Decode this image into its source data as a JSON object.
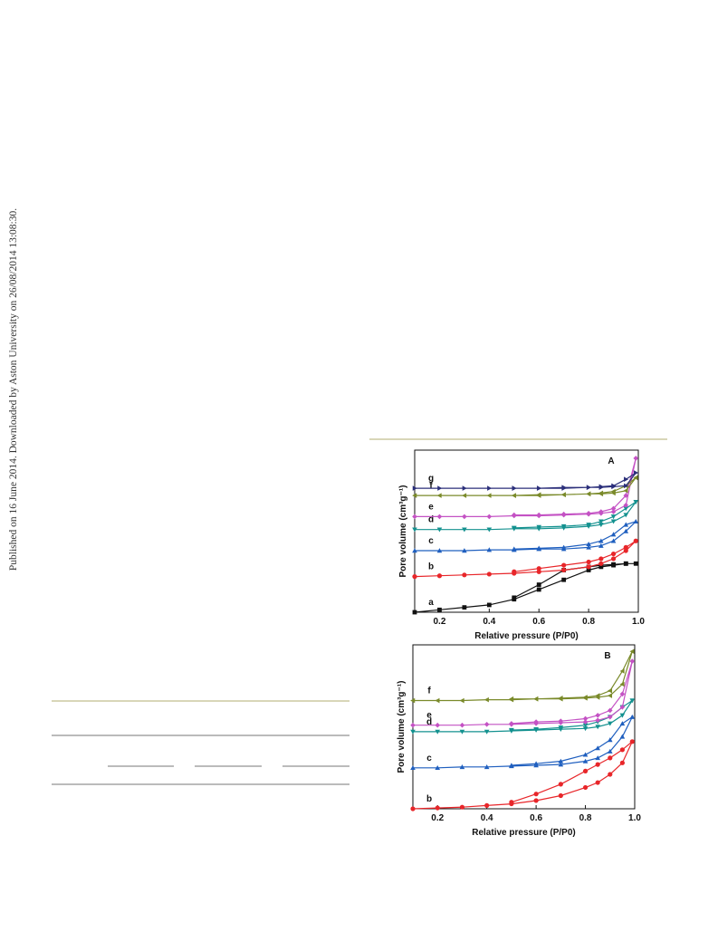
{
  "watermark": "Published on 16 June 2014. Downloaded by Aston University on 26/08/2014 13:08:30.",
  "chart_data": [
    {
      "type": "line",
      "panel_label": "A",
      "x_label": "Relative pressure (P/P0)",
      "y_label": "Pore volume (cm³g⁻¹)",
      "xlim": [
        0.1,
        1.0
      ],
      "xticks": [
        0.2,
        0.4,
        0.6,
        0.8,
        {
          "value": 1,
          "label": "1.0"
        }
      ],
      "ylim": [
        0,
        100
      ],
      "series": [
        {
          "name": "a",
          "color": "#111111",
          "marker": "square",
          "x": [
            0.1,
            0.2,
            0.3,
            0.4,
            0.5,
            0.6,
            0.7,
            0.8,
            0.85,
            0.9,
            0.95,
            0.99,
            0.95,
            0.9,
            0.85,
            0.8,
            0.7,
            0.6,
            0.5
          ],
          "values": [
            0,
            1.5,
            3,
            4.5,
            8,
            14,
            20,
            26,
            28,
            29,
            30,
            30,
            30,
            29.5,
            29,
            28,
            26,
            17,
            9
          ]
        },
        {
          "name": "b",
          "color": "#e8262a",
          "marker": "circle",
          "x": [
            0.1,
            0.2,
            0.3,
            0.4,
            0.5,
            0.6,
            0.7,
            0.8,
            0.85,
            0.9,
            0.95,
            0.99,
            0.95,
            0.9,
            0.85,
            0.8,
            0.7,
            0.6,
            0.5
          ],
          "values": [
            22,
            22.5,
            23,
            23.5,
            24,
            25,
            26,
            28,
            30,
            33,
            38,
            44,
            40,
            36,
            33,
            31,
            29,
            27,
            25
          ]
        },
        {
          "name": "c",
          "color": "#1f5fbf",
          "marker": "triangle-up",
          "x": [
            0.1,
            0.2,
            0.3,
            0.4,
            0.5,
            0.6,
            0.7,
            0.8,
            0.85,
            0.9,
            0.95,
            0.99,
            0.95,
            0.9,
            0.85,
            0.8,
            0.7,
            0.6,
            0.5
          ],
          "values": [
            38,
            38,
            38,
            38.5,
            38.5,
            39,
            39,
            40,
            41,
            44,
            50,
            56,
            54,
            48,
            44,
            42,
            40,
            39.5,
            39
          ]
        },
        {
          "name": "d",
          "color": "#13918f",
          "marker": "triangle-down",
          "x": [
            0.1,
            0.2,
            0.3,
            0.4,
            0.5,
            0.6,
            0.7,
            0.8,
            0.85,
            0.9,
            0.95,
            0.99,
            0.95,
            0.9,
            0.85,
            0.8,
            0.7,
            0.6,
            0.5
          ],
          "values": [
            51,
            51,
            51,
            51,
            51.5,
            51.5,
            52,
            53,
            54,
            56,
            60,
            68,
            64,
            59,
            56,
            54,
            53,
            52.5,
            52
          ]
        },
        {
          "name": "e",
          "color": "#c452c4",
          "marker": "diamond",
          "x": [
            0.1,
            0.2,
            0.3,
            0.4,
            0.5,
            0.6,
            0.7,
            0.8,
            0.85,
            0.9,
            0.95,
            0.99,
            0.95,
            0.9,
            0.85,
            0.8,
            0.7,
            0.6,
            0.5
          ],
          "values": [
            59,
            59,
            59,
            59,
            59.5,
            59.5,
            60,
            60.5,
            61,
            62,
            66,
            95,
            72,
            64,
            62,
            61,
            60.5,
            60,
            60
          ]
        },
        {
          "name": "f",
          "color": "#7a8a2a",
          "marker": "triangle-left",
          "x": [
            0.1,
            0.2,
            0.3,
            0.4,
            0.5,
            0.6,
            0.7,
            0.8,
            0.85,
            0.9,
            0.95,
            0.99,
            0.95,
            0.9,
            0.85,
            0.8,
            0.7,
            0.6,
            0.5
          ],
          "values": [
            72,
            72,
            72,
            72,
            72,
            72,
            72.5,
            73,
            73,
            73.5,
            75,
            83,
            78,
            74.5,
            73.5,
            73,
            72.5,
            72.5,
            72
          ]
        },
        {
          "name": "g",
          "color": "#2b2f7a",
          "marker": "triangle-right",
          "x": [
            0.1,
            0.2,
            0.3,
            0.4,
            0.5,
            0.6,
            0.7,
            0.8,
            0.85,
            0.9,
            0.95,
            0.99,
            0.95,
            0.9,
            0.85,
            0.8,
            0.7,
            0.6,
            0.5
          ],
          "values": [
            76.5,
            76.5,
            76.5,
            76.5,
            76.5,
            76.5,
            76.5,
            77,
            77,
            77.5,
            78,
            86,
            82,
            78,
            77.5,
            77,
            77,
            76.5,
            76.5
          ]
        }
      ]
    },
    {
      "type": "line",
      "panel_label": "B",
      "x_label": "Relative pressure (P/P0)",
      "y_label": "Pore volume (cm³g⁻¹)",
      "xlim": [
        0.1,
        1.0
      ],
      "xticks": [
        0.2,
        0.4,
        0.6,
        0.8,
        {
          "value": 1,
          "label": "1.0"
        }
      ],
      "ylim": [
        0,
        100
      ],
      "series": [
        {
          "name": "b",
          "color": "#e8262a",
          "marker": "circle",
          "x": [
            0.1,
            0.2,
            0.3,
            0.4,
            0.5,
            0.6,
            0.7,
            0.8,
            0.85,
            0.9,
            0.95,
            0.99,
            0.95,
            0.9,
            0.85,
            0.8,
            0.7,
            0.6,
            0.5
          ],
          "values": [
            0,
            0.5,
            1,
            2,
            3,
            5,
            8,
            13,
            16,
            21,
            28,
            41,
            36,
            31,
            27,
            23,
            15,
            9,
            4
          ]
        },
        {
          "name": "c",
          "color": "#1f5fbf",
          "marker": "triangle-up",
          "x": [
            0.1,
            0.2,
            0.3,
            0.4,
            0.5,
            0.6,
            0.7,
            0.8,
            0.85,
            0.9,
            0.95,
            0.99,
            0.95,
            0.9,
            0.85,
            0.8,
            0.7,
            0.6,
            0.5
          ],
          "values": [
            25,
            25,
            25.5,
            25.5,
            26,
            26.5,
            27,
            29,
            31,
            35,
            44,
            56,
            52,
            42,
            37,
            33,
            29,
            27.5,
            26.5
          ]
        },
        {
          "name": "d",
          "color": "#13918f",
          "marker": "triangle-down",
          "x": [
            0.1,
            0.2,
            0.3,
            0.4,
            0.5,
            0.6,
            0.7,
            0.8,
            0.85,
            0.9,
            0.95,
            0.99,
            0.95,
            0.9,
            0.85,
            0.8,
            0.7,
            0.6,
            0.5
          ],
          "values": [
            47,
            47,
            47,
            47,
            47.5,
            48,
            48.5,
            49,
            50,
            52,
            57,
            66,
            62,
            56,
            53,
            51,
            49.5,
            48.5,
            48
          ]
        },
        {
          "name": "e",
          "color": "#c452c4",
          "marker": "diamond",
          "x": [
            0.1,
            0.2,
            0.3,
            0.4,
            0.5,
            0.6,
            0.7,
            0.8,
            0.85,
            0.9,
            0.95,
            0.99,
            0.95,
            0.9,
            0.85,
            0.8,
            0.7,
            0.6,
            0.5
          ],
          "values": [
            51,
            51,
            51,
            51.5,
            51.5,
            52,
            52.5,
            53,
            54,
            56,
            62,
            90,
            70,
            60,
            57,
            55,
            53.5,
            53,
            52
          ]
        },
        {
          "name": "f",
          "color": "#7a8a2a",
          "marker": "triangle-left",
          "x": [
            0.1,
            0.2,
            0.3,
            0.4,
            0.5,
            0.6,
            0.7,
            0.8,
            0.85,
            0.9,
            0.95,
            0.99,
            0.95,
            0.9,
            0.85,
            0.8,
            0.7,
            0.6,
            0.5
          ],
          "values": [
            66,
            66,
            66,
            66.5,
            66.5,
            67,
            67,
            67.5,
            68,
            69,
            76,
            96,
            84,
            72,
            69,
            68,
            67.5,
            67,
            67
          ]
        }
      ]
    }
  ]
}
